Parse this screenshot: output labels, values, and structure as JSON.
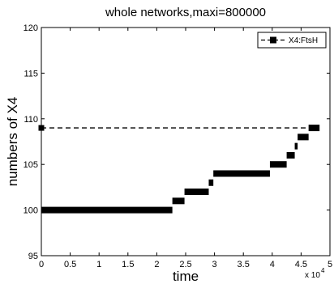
{
  "chart_data": {
    "type": "line",
    "title": "whole networks,maxi=800000",
    "xlabel": "time",
    "ylabel": "numbers of X4",
    "x_multiplier_label": "x 10",
    "x_multiplier_exponent": "4",
    "xlim": [
      0,
      50000
    ],
    "ylim": [
      95,
      120
    ],
    "x_ticks": [
      0,
      5000,
      10000,
      15000,
      20000,
      25000,
      30000,
      35000,
      40000,
      45000,
      50000
    ],
    "x_tick_labels": [
      "0",
      "0.5",
      "1",
      "1.5",
      "2",
      "2.5",
      "3",
      "3.5",
      "4",
      "4.5",
      "5"
    ],
    "y_ticks": [
      95,
      100,
      105,
      110,
      115,
      120
    ],
    "y_tick_labels": [
      "95",
      "100",
      "105",
      "110",
      "115",
      "120"
    ],
    "grid": false,
    "legend_position": "top-right",
    "series": [
      {
        "name": "X4:FtsH",
        "style": "dashed-square-markers",
        "color": "#000000",
        "x": [
          0,
          47000
        ],
        "y": [
          109,
          109
        ]
      },
      {
        "style": "thick-step-line",
        "color": "#000000",
        "steps": [
          {
            "x_start": 0,
            "x_end": 22700,
            "y": 100
          },
          {
            "x_start": 22700,
            "x_end": 24800,
            "y": 101
          },
          {
            "x_start": 24800,
            "x_end": 29000,
            "y": 102
          },
          {
            "x_start": 29000,
            "x_end": 29800,
            "y": 103
          },
          {
            "x_start": 29800,
            "x_end": 39600,
            "y": 104
          },
          {
            "x_start": 39600,
            "x_end": 42500,
            "y": 105
          },
          {
            "x_start": 42500,
            "x_end": 43900,
            "y": 106
          },
          {
            "x_start": 43900,
            "x_end": 44400,
            "y": 107
          },
          {
            "x_start": 44400,
            "x_end": 46300,
            "y": 108
          },
          {
            "x_start": 46300,
            "x_end": 48200,
            "y": 109
          }
        ]
      }
    ]
  }
}
